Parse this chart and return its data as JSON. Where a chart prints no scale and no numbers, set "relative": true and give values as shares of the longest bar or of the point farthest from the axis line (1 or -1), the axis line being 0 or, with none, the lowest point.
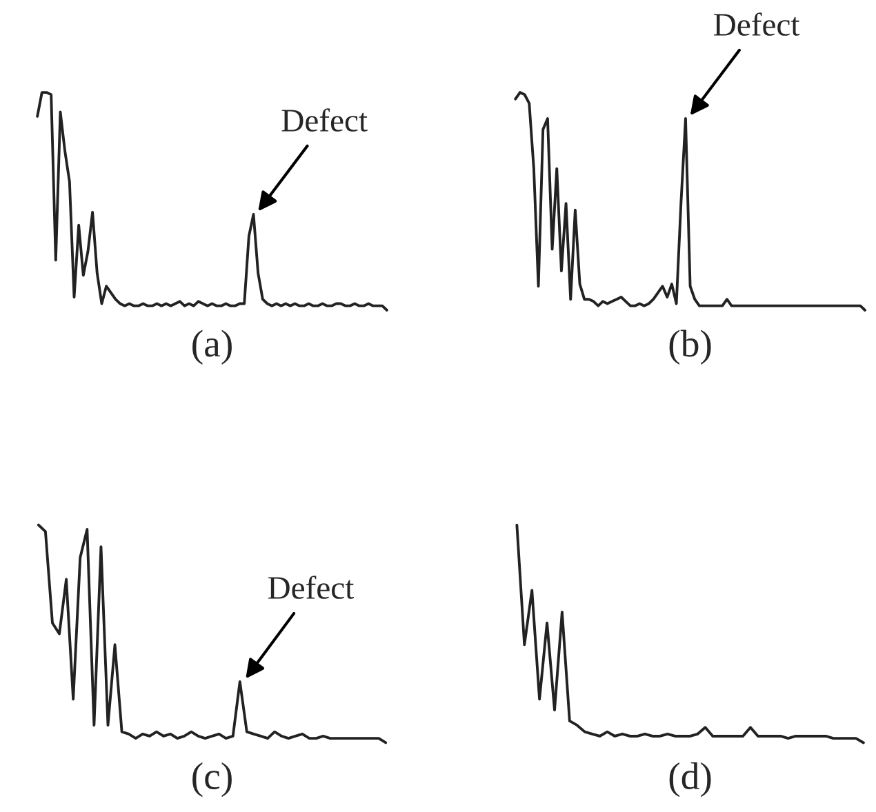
{
  "chart_data": [
    {
      "type": "line",
      "relative": true,
      "tick_labels": false,
      "xlabel": "(a)",
      "annotations": [
        "Defect"
      ],
      "color": "#222222",
      "categories": [
        null,
        null,
        null,
        null,
        null,
        null,
        null,
        null,
        null,
        null,
        null,
        null,
        null,
        null,
        null,
        null,
        null,
        null,
        null,
        null,
        null,
        null,
        null,
        null,
        null,
        null,
        null,
        null,
        null,
        null,
        null,
        null,
        null,
        null,
        null,
        null,
        null,
        null,
        null,
        null,
        null,
        null,
        null,
        null,
        null,
        null,
        null,
        null,
        null,
        null,
        null,
        null,
        null,
        null,
        null,
        null,
        null,
        null,
        null,
        null,
        null,
        null,
        null,
        null,
        null,
        null,
        null,
        null,
        null,
        null,
        null,
        null,
        null,
        null,
        null,
        null,
        null
      ],
      "values": [
        0.89,
        1.0,
        1.0,
        0.99,
        0.23,
        0.91,
        0.73,
        0.59,
        0.06,
        0.39,
        0.16,
        0.27,
        0.45,
        0.17,
        0.03,
        0.11,
        0.08,
        0.05,
        0.03,
        0.02,
        0.03,
        0.02,
        0.02,
        0.03,
        0.02,
        0.02,
        0.03,
        0.02,
        0.03,
        0.02,
        0.03,
        0.04,
        0.02,
        0.03,
        0.02,
        0.04,
        0.03,
        0.02,
        0.03,
        0.02,
        0.02,
        0.03,
        0.02,
        0.02,
        0.03,
        0.03,
        0.34,
        0.44,
        0.17,
        0.05,
        0.03,
        0.02,
        0.03,
        0.02,
        0.03,
        0.02,
        0.03,
        0.02,
        0.02,
        0.03,
        0.02,
        0.02,
        0.03,
        0.02,
        0.02,
        0.03,
        0.03,
        0.02,
        0.02,
        0.03,
        0.02,
        0.02,
        0.03,
        0.02,
        0.02,
        0.02,
        0.0
      ]
    },
    {
      "type": "line",
      "relative": true,
      "tick_labels": false,
      "xlabel": "(b)",
      "annotations": [
        "Defect"
      ],
      "color": "#222222",
      "categories": [
        null,
        null,
        null,
        null,
        null,
        null,
        null,
        null,
        null,
        null,
        null,
        null,
        null,
        null,
        null,
        null,
        null,
        null,
        null,
        null,
        null,
        null,
        null,
        null,
        null,
        null,
        null,
        null,
        null,
        null,
        null,
        null,
        null,
        null,
        null,
        null,
        null,
        null,
        null,
        null,
        null,
        null,
        null,
        null,
        null,
        null,
        null,
        null,
        null,
        null,
        null,
        null,
        null,
        null,
        null,
        null,
        null,
        null,
        null,
        null,
        null,
        null,
        null,
        null,
        null,
        null,
        null,
        null,
        null,
        null,
        null,
        null,
        null,
        null,
        null,
        null,
        null
      ],
      "values": [
        0.97,
        1.0,
        0.99,
        0.95,
        0.65,
        0.11,
        0.83,
        0.88,
        0.28,
        0.65,
        0.18,
        0.49,
        0.05,
        0.46,
        0.12,
        0.05,
        0.05,
        0.04,
        0.02,
        0.04,
        0.03,
        0.04,
        0.05,
        0.06,
        0.04,
        0.02,
        0.02,
        0.03,
        0.02,
        0.03,
        0.05,
        0.08,
        0.11,
        0.06,
        0.12,
        0.03,
        0.49,
        0.88,
        0.11,
        0.05,
        0.02,
        0.02,
        0.02,
        0.02,
        0.02,
        0.02,
        0.05,
        0.02,
        0.02,
        0.02,
        0.02,
        0.02,
        0.02,
        0.02,
        0.02,
        0.02,
        0.02,
        0.02,
        0.02,
        0.02,
        0.02,
        0.02,
        0.02,
        0.02,
        0.02,
        0.02,
        0.02,
        0.02,
        0.02,
        0.02,
        0.02,
        0.02,
        0.02,
        0.02,
        0.02,
        0.02,
        0.0
      ]
    },
    {
      "type": "line",
      "relative": true,
      "tick_labels": false,
      "xlabel": "(c)",
      "annotations": [
        "Defect"
      ],
      "color": "#222222",
      "categories": [
        null,
        null,
        null,
        null,
        null,
        null,
        null,
        null,
        null,
        null,
        null,
        null,
        null,
        null,
        null,
        null,
        null,
        null,
        null,
        null,
        null,
        null,
        null,
        null,
        null,
        null,
        null,
        null,
        null,
        null,
        null,
        null,
        null,
        null,
        null,
        null,
        null,
        null,
        null,
        null,
        null,
        null,
        null,
        null,
        null,
        null,
        null,
        null,
        null,
        null,
        null
      ],
      "values": [
        1.0,
        0.97,
        0.55,
        0.5,
        0.75,
        0.2,
        0.85,
        0.98,
        0.08,
        0.9,
        0.08,
        0.45,
        0.05,
        0.04,
        0.02,
        0.04,
        0.03,
        0.05,
        0.03,
        0.04,
        0.02,
        0.03,
        0.05,
        0.03,
        0.02,
        0.03,
        0.04,
        0.02,
        0.03,
        0.28,
        0.05,
        0.04,
        0.03,
        0.02,
        0.05,
        0.03,
        0.02,
        0.03,
        0.04,
        0.02,
        0.02,
        0.03,
        0.02,
        0.02,
        0.02,
        0.02,
        0.02,
        0.02,
        0.02,
        0.02,
        0.0
      ]
    },
    {
      "type": "line",
      "relative": true,
      "tick_labels": false,
      "xlabel": "(d)",
      "color": "#222222",
      "categories": [
        null,
        null,
        null,
        null,
        null,
        null,
        null,
        null,
        null,
        null,
        null,
        null,
        null,
        null,
        null,
        null,
        null,
        null,
        null,
        null,
        null,
        null,
        null,
        null,
        null,
        null,
        null,
        null,
        null,
        null,
        null,
        null,
        null,
        null,
        null,
        null,
        null,
        null,
        null,
        null,
        null,
        null,
        null,
        null,
        null,
        null,
        null
      ],
      "values": [
        1.0,
        0.45,
        0.7,
        0.2,
        0.55,
        0.15,
        0.6,
        0.1,
        0.08,
        0.05,
        0.04,
        0.03,
        0.05,
        0.03,
        0.04,
        0.03,
        0.03,
        0.04,
        0.03,
        0.03,
        0.04,
        0.03,
        0.03,
        0.03,
        0.04,
        0.07,
        0.03,
        0.03,
        0.03,
        0.03,
        0.03,
        0.07,
        0.03,
        0.03,
        0.03,
        0.03,
        0.02,
        0.03,
        0.03,
        0.03,
        0.03,
        0.03,
        0.02,
        0.02,
        0.02,
        0.02,
        0.0
      ]
    }
  ]
}
